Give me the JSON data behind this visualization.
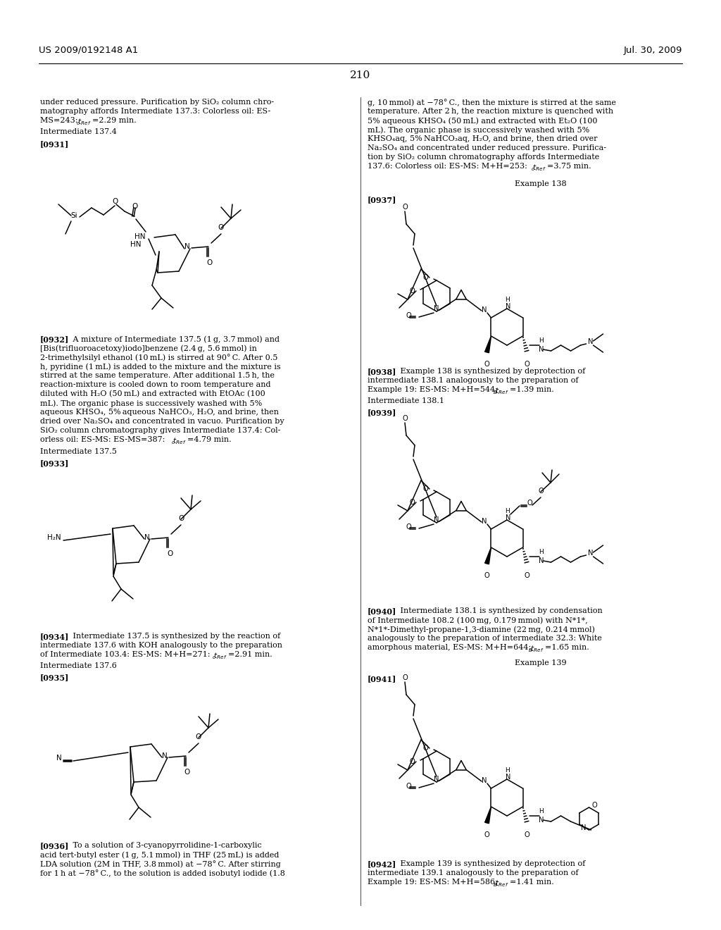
{
  "bg": "#ffffff",
  "header_left": "US 2009/0192148 A1",
  "header_right": "Jul. 30, 2009",
  "page_num": "210"
}
